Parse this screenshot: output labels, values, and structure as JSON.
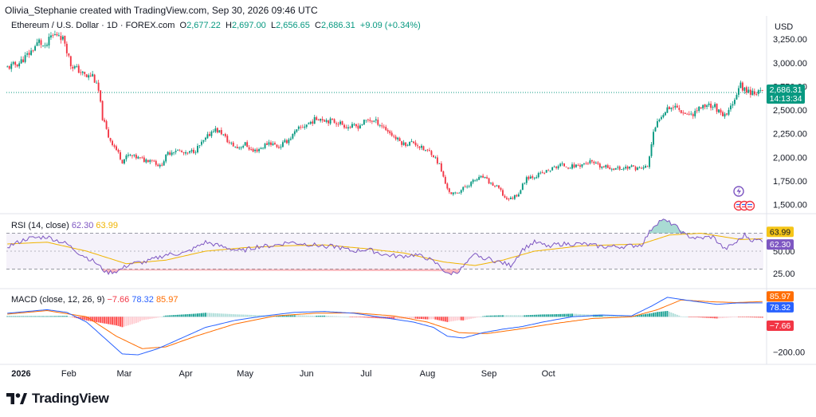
{
  "header": {
    "credit": "Olivia_Stephanie created with TradingView.com, Sep 30, 2026 09:46 UTC",
    "symbol": "Ethereum / U.S. Dollar · 1D · FOREX.com",
    "open_label": "O",
    "open": "2,677.22",
    "high_label": "H",
    "high": "2,697.00",
    "low_label": "L",
    "low": "2,656.65",
    "close_label": "C",
    "close": "2,686.31",
    "change": "+9.09 (+0.34%)"
  },
  "currency": "USD",
  "price_tag": {
    "price": "2,686.31",
    "countdown": "14:13:34"
  },
  "rsi": {
    "label": "RSI (14, close)",
    "rsi_value": "62.30",
    "ma_value": "63.99"
  },
  "macd": {
    "label": "MACD (close, 12, 26, 9)",
    "hist_value": "−7.66",
    "macd_value": "78.32",
    "signal_value": "85.97"
  },
  "footer": {
    "brand": "TradingView"
  },
  "colors": {
    "up": "#089981",
    "down": "#f23645",
    "rsi": "#7e57c2",
    "rsi_ma": "#f0b400",
    "macd": "#2962ff",
    "signal": "#ff6d00"
  },
  "chart_data": [
    {
      "type": "candlestick",
      "title": "Ethereum / U.S. Dollar · 1D · FOREX.com",
      "x_ticks": [
        "2026",
        "Feb",
        "Mar",
        "Apr",
        "May",
        "Jun",
        "Jul",
        "Aug",
        "Sep",
        "Oct"
      ],
      "y_ticks": [
        "3,250.00",
        "3,000.00",
        "2,750.00",
        "2,500.00",
        "2,250.00",
        "2,000.00",
        "1,750.00",
        "1,500.00"
      ],
      "ylim": [
        1420,
        3480
      ],
      "last": 2686.31,
      "close_path": [
        [
          0,
          2950
        ],
        [
          6,
          3000
        ],
        [
          12,
          3120
        ],
        [
          16,
          3230
        ],
        [
          19,
          3150
        ],
        [
          22,
          3280
        ],
        [
          26,
          3310
        ],
        [
          29,
          3220
        ],
        [
          32,
          2980
        ],
        [
          36,
          2920
        ],
        [
          40,
          2850
        ],
        [
          43,
          2870
        ],
        [
          46,
          2700
        ],
        [
          48,
          2420
        ],
        [
          51,
          2220
        ],
        [
          55,
          2080
        ],
        [
          58,
          1960
        ],
        [
          61,
          2020
        ],
        [
          65,
          2000
        ],
        [
          69,
          1970
        ],
        [
          73,
          1980
        ],
        [
          77,
          1900
        ],
        [
          81,
          2040
        ],
        [
          85,
          2080
        ],
        [
          90,
          2030
        ],
        [
          95,
          2080
        ],
        [
          100,
          2190
        ],
        [
          104,
          2300
        ],
        [
          108,
          2260
        ],
        [
          112,
          2150
        ],
        [
          116,
          2100
        ],
        [
          120,
          2140
        ],
        [
          124,
          2060
        ],
        [
          128,
          2100
        ],
        [
          132,
          2160
        ],
        [
          137,
          2110
        ],
        [
          142,
          2190
        ],
        [
          147,
          2300
        ],
        [
          152,
          2360
        ],
        [
          157,
          2420
        ],
        [
          162,
          2390
        ],
        [
          167,
          2370
        ],
        [
          172,
          2320
        ],
        [
          177,
          2330
        ],
        [
          182,
          2400
        ],
        [
          187,
          2370
        ],
        [
          192,
          2280
        ],
        [
          196,
          2200
        ],
        [
          200,
          2140
        ],
        [
          205,
          2160
        ],
        [
          210,
          2080
        ],
        [
          214,
          2050
        ],
        [
          218,
          1920
        ],
        [
          221,
          1720
        ],
        [
          224,
          1600
        ],
        [
          228,
          1640
        ],
        [
          232,
          1700
        ],
        [
          236,
          1760
        ],
        [
          240,
          1790
        ],
        [
          244,
          1720
        ],
        [
          248,
          1670
        ],
        [
          251,
          1570
        ],
        [
          254,
          1560
        ],
        [
          258,
          1620
        ],
        [
          262,
          1790
        ],
        [
          266,
          1800
        ],
        [
          270,
          1830
        ],
        [
          274,
          1870
        ],
        [
          279,
          1920
        ],
        [
          284,
          1900
        ],
        [
          289,
          1920
        ],
        [
          294,
          1950
        ],
        [
          299,
          1900
        ],
        [
          304,
          1890
        ],
        [
          309,
          1880
        ],
        [
          314,
          1900
        ],
        [
          319,
          1880
        ],
        [
          323,
          1900
        ],
        [
          326,
          2250
        ],
        [
          329,
          2420
        ],
        [
          333,
          2530
        ],
        [
          337,
          2540
        ],
        [
          341,
          2480
        ],
        [
          345,
          2450
        ],
        [
          349,
          2520
        ],
        [
          353,
          2560
        ],
        [
          357,
          2540
        ],
        [
          361,
          2420
        ],
        [
          364,
          2480
        ],
        [
          367,
          2640
        ],
        [
          370,
          2760
        ],
        [
          373,
          2700
        ],
        [
          377,
          2690
        ],
        [
          381,
          2686
        ]
      ]
    },
    {
      "type": "line",
      "title": "RSI (14, close)",
      "y_ticks": [
        50,
        25
      ],
      "bands": [
        70,
        30
      ],
      "series": [
        {
          "name": "RSI",
          "values": [
            [
              0,
              55
            ],
            [
              10,
              64
            ],
            [
              20,
              66
            ],
            [
              30,
              58
            ],
            [
              36,
              48
            ],
            [
              44,
              38
            ],
            [
              50,
              26
            ],
            [
              56,
              28
            ],
            [
              62,
              36
            ],
            [
              70,
              38
            ],
            [
              80,
              46
            ],
            [
              90,
              48
            ],
            [
              100,
              60
            ],
            [
              110,
              54
            ],
            [
              118,
              50
            ],
            [
              126,
              55
            ],
            [
              134,
              56
            ],
            [
              142,
              60
            ],
            [
              150,
              58
            ],
            [
              158,
              56
            ],
            [
              166,
              55
            ],
            [
              174,
              50
            ],
            [
              182,
              52
            ],
            [
              190,
              46
            ],
            [
              198,
              44
            ],
            [
              206,
              46
            ],
            [
              212,
              42
            ],
            [
              218,
              34
            ],
            [
              222,
              24
            ],
            [
              228,
              28
            ],
            [
              236,
              46
            ],
            [
              242,
              42
            ],
            [
              248,
              38
            ],
            [
              254,
              34
            ],
            [
              260,
              52
            ],
            [
              266,
              60
            ],
            [
              272,
              56
            ],
            [
              280,
              58
            ],
            [
              290,
              58
            ],
            [
              300,
              55
            ],
            [
              310,
              55
            ],
            [
              320,
              57
            ],
            [
              326,
              78
            ],
            [
              330,
              85
            ],
            [
              336,
              80
            ],
            [
              342,
              68
            ],
            [
              348,
              64
            ],
            [
              356,
              66
            ],
            [
              362,
              52
            ],
            [
              368,
              60
            ],
            [
              372,
              68
            ],
            [
              376,
              62
            ],
            [
              381,
              62.3
            ]
          ]
        },
        {
          "name": "RSI MA",
          "values": [
            [
              0,
              58
            ],
            [
              20,
              60
            ],
            [
              40,
              50
            ],
            [
              60,
              36
            ],
            [
              80,
              40
            ],
            [
              100,
              50
            ],
            [
              120,
              54
            ],
            [
              140,
              56
            ],
            [
              160,
              57
            ],
            [
              180,
              53
            ],
            [
              200,
              48
            ],
            [
              220,
              38
            ],
            [
              236,
              34
            ],
            [
              250,
              40
            ],
            [
              266,
              50
            ],
            [
              290,
              56
            ],
            [
              320,
              58
            ],
            [
              334,
              68
            ],
            [
              350,
              70
            ],
            [
              370,
              63
            ],
            [
              381,
              63.99
            ]
          ]
        }
      ]
    },
    {
      "type": "line",
      "title": "MACD (close, 12, 26, 9)",
      "y_ticks": [
        -200
      ],
      "ylim": [
        -260,
        150
      ],
      "series": [
        {
          "name": "MACD",
          "values": [
            [
              0,
              20
            ],
            [
              10,
              30
            ],
            [
              20,
              40
            ],
            [
              30,
              25
            ],
            [
              40,
              -30
            ],
            [
              50,
              -130
            ],
            [
              58,
              -210
            ],
            [
              66,
              -215
            ],
            [
              76,
              -180
            ],
            [
              88,
              -120
            ],
            [
              100,
              -60
            ],
            [
              115,
              -20
            ],
            [
              130,
              5
            ],
            [
              145,
              25
            ],
            [
              160,
              30
            ],
            [
              175,
              20
            ],
            [
              190,
              -5
            ],
            [
              205,
              -30
            ],
            [
              215,
              -60
            ],
            [
              222,
              -110
            ],
            [
              230,
              -120
            ],
            [
              240,
              -90
            ],
            [
              250,
              -70
            ],
            [
              260,
              -55
            ],
            [
              270,
              -30
            ],
            [
              285,
              0
            ],
            [
              300,
              10
            ],
            [
              315,
              5
            ],
            [
              325,
              60
            ],
            [
              333,
              110
            ],
            [
              345,
              90
            ],
            [
              358,
              70
            ],
            [
              368,
              78
            ],
            [
              381,
              78.32
            ]
          ]
        },
        {
          "name": "Signal",
          "values": [
            [
              0,
              15
            ],
            [
              20,
              35
            ],
            [
              40,
              0
            ],
            [
              55,
              -110
            ],
            [
              68,
              -180
            ],
            [
              80,
              -170
            ],
            [
              95,
              -110
            ],
            [
              115,
              -40
            ],
            [
              135,
              5
            ],
            [
              155,
              20
            ],
            [
              175,
              22
            ],
            [
              195,
              5
            ],
            [
              212,
              -30
            ],
            [
              228,
              -90
            ],
            [
              242,
              -95
            ],
            [
              258,
              -70
            ],
            [
              275,
              -40
            ],
            [
              295,
              -10
            ],
            [
              315,
              0
            ],
            [
              328,
              40
            ],
            [
              340,
              95
            ],
            [
              355,
              85
            ],
            [
              368,
              80
            ],
            [
              381,
              85.97
            ]
          ]
        }
      ]
    }
  ]
}
